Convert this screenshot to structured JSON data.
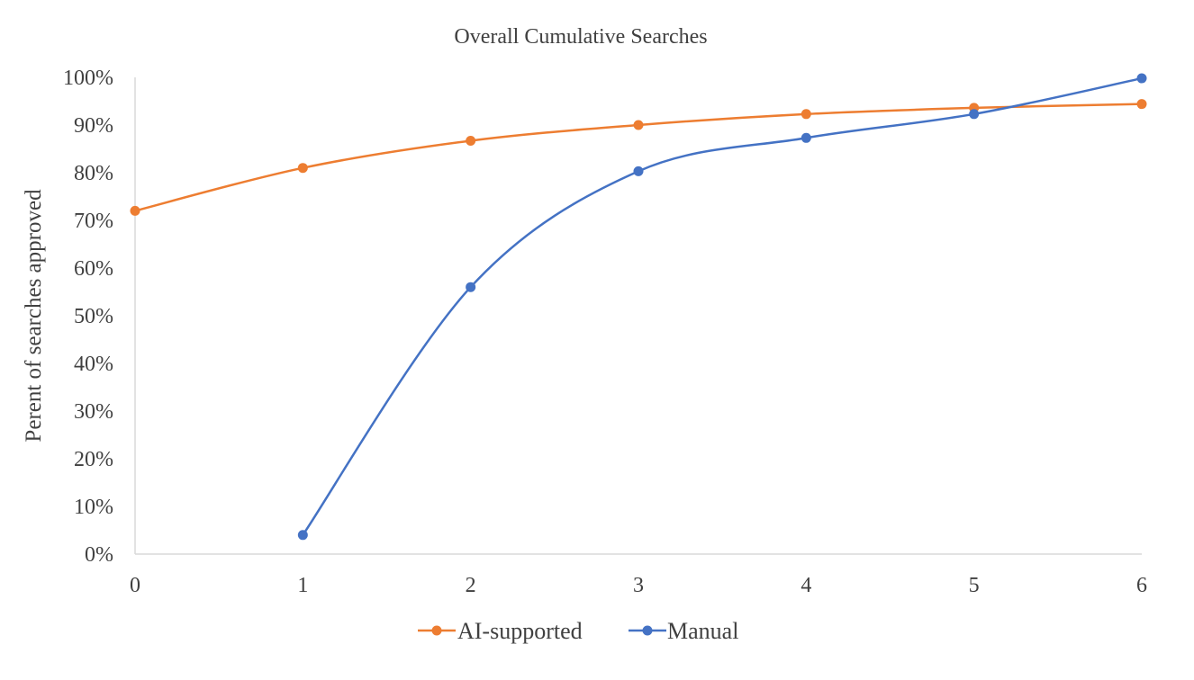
{
  "chart_data": {
    "type": "line",
    "title": "Overall Cumulative Searches",
    "xlabel": "",
    "ylabel": "Perent of searches approved",
    "x": [
      0,
      1,
      2,
      3,
      4,
      5,
      6
    ],
    "xlim": [
      0,
      6
    ],
    "ylim": [
      0,
      100
    ],
    "x_ticks": [
      "0",
      "1",
      "2",
      "3",
      "4",
      "5",
      "6"
    ],
    "y_ticks": [
      "0%",
      "10%",
      "20%",
      "30%",
      "40%",
      "50%",
      "60%",
      "70%",
      "80%",
      "90%",
      "100%"
    ],
    "y_tick_values": [
      0,
      10,
      20,
      30,
      40,
      50,
      60,
      70,
      80,
      90,
      100
    ],
    "grid": false,
    "smooth": true,
    "legend_position": "bottom",
    "series": [
      {
        "name": "AI-supported",
        "color": "#ED7D31",
        "x": [
          0,
          1,
          2,
          3,
          4,
          5,
          6
        ],
        "values": [
          72,
          81,
          86.7,
          90,
          92.3,
          93.6,
          94.4
        ]
      },
      {
        "name": "Manual",
        "color": "#4472C4",
        "x": [
          1,
          2,
          3,
          4,
          5,
          6
        ],
        "values": [
          4,
          56,
          80.3,
          87.3,
          92.3,
          99.8
        ]
      }
    ]
  }
}
